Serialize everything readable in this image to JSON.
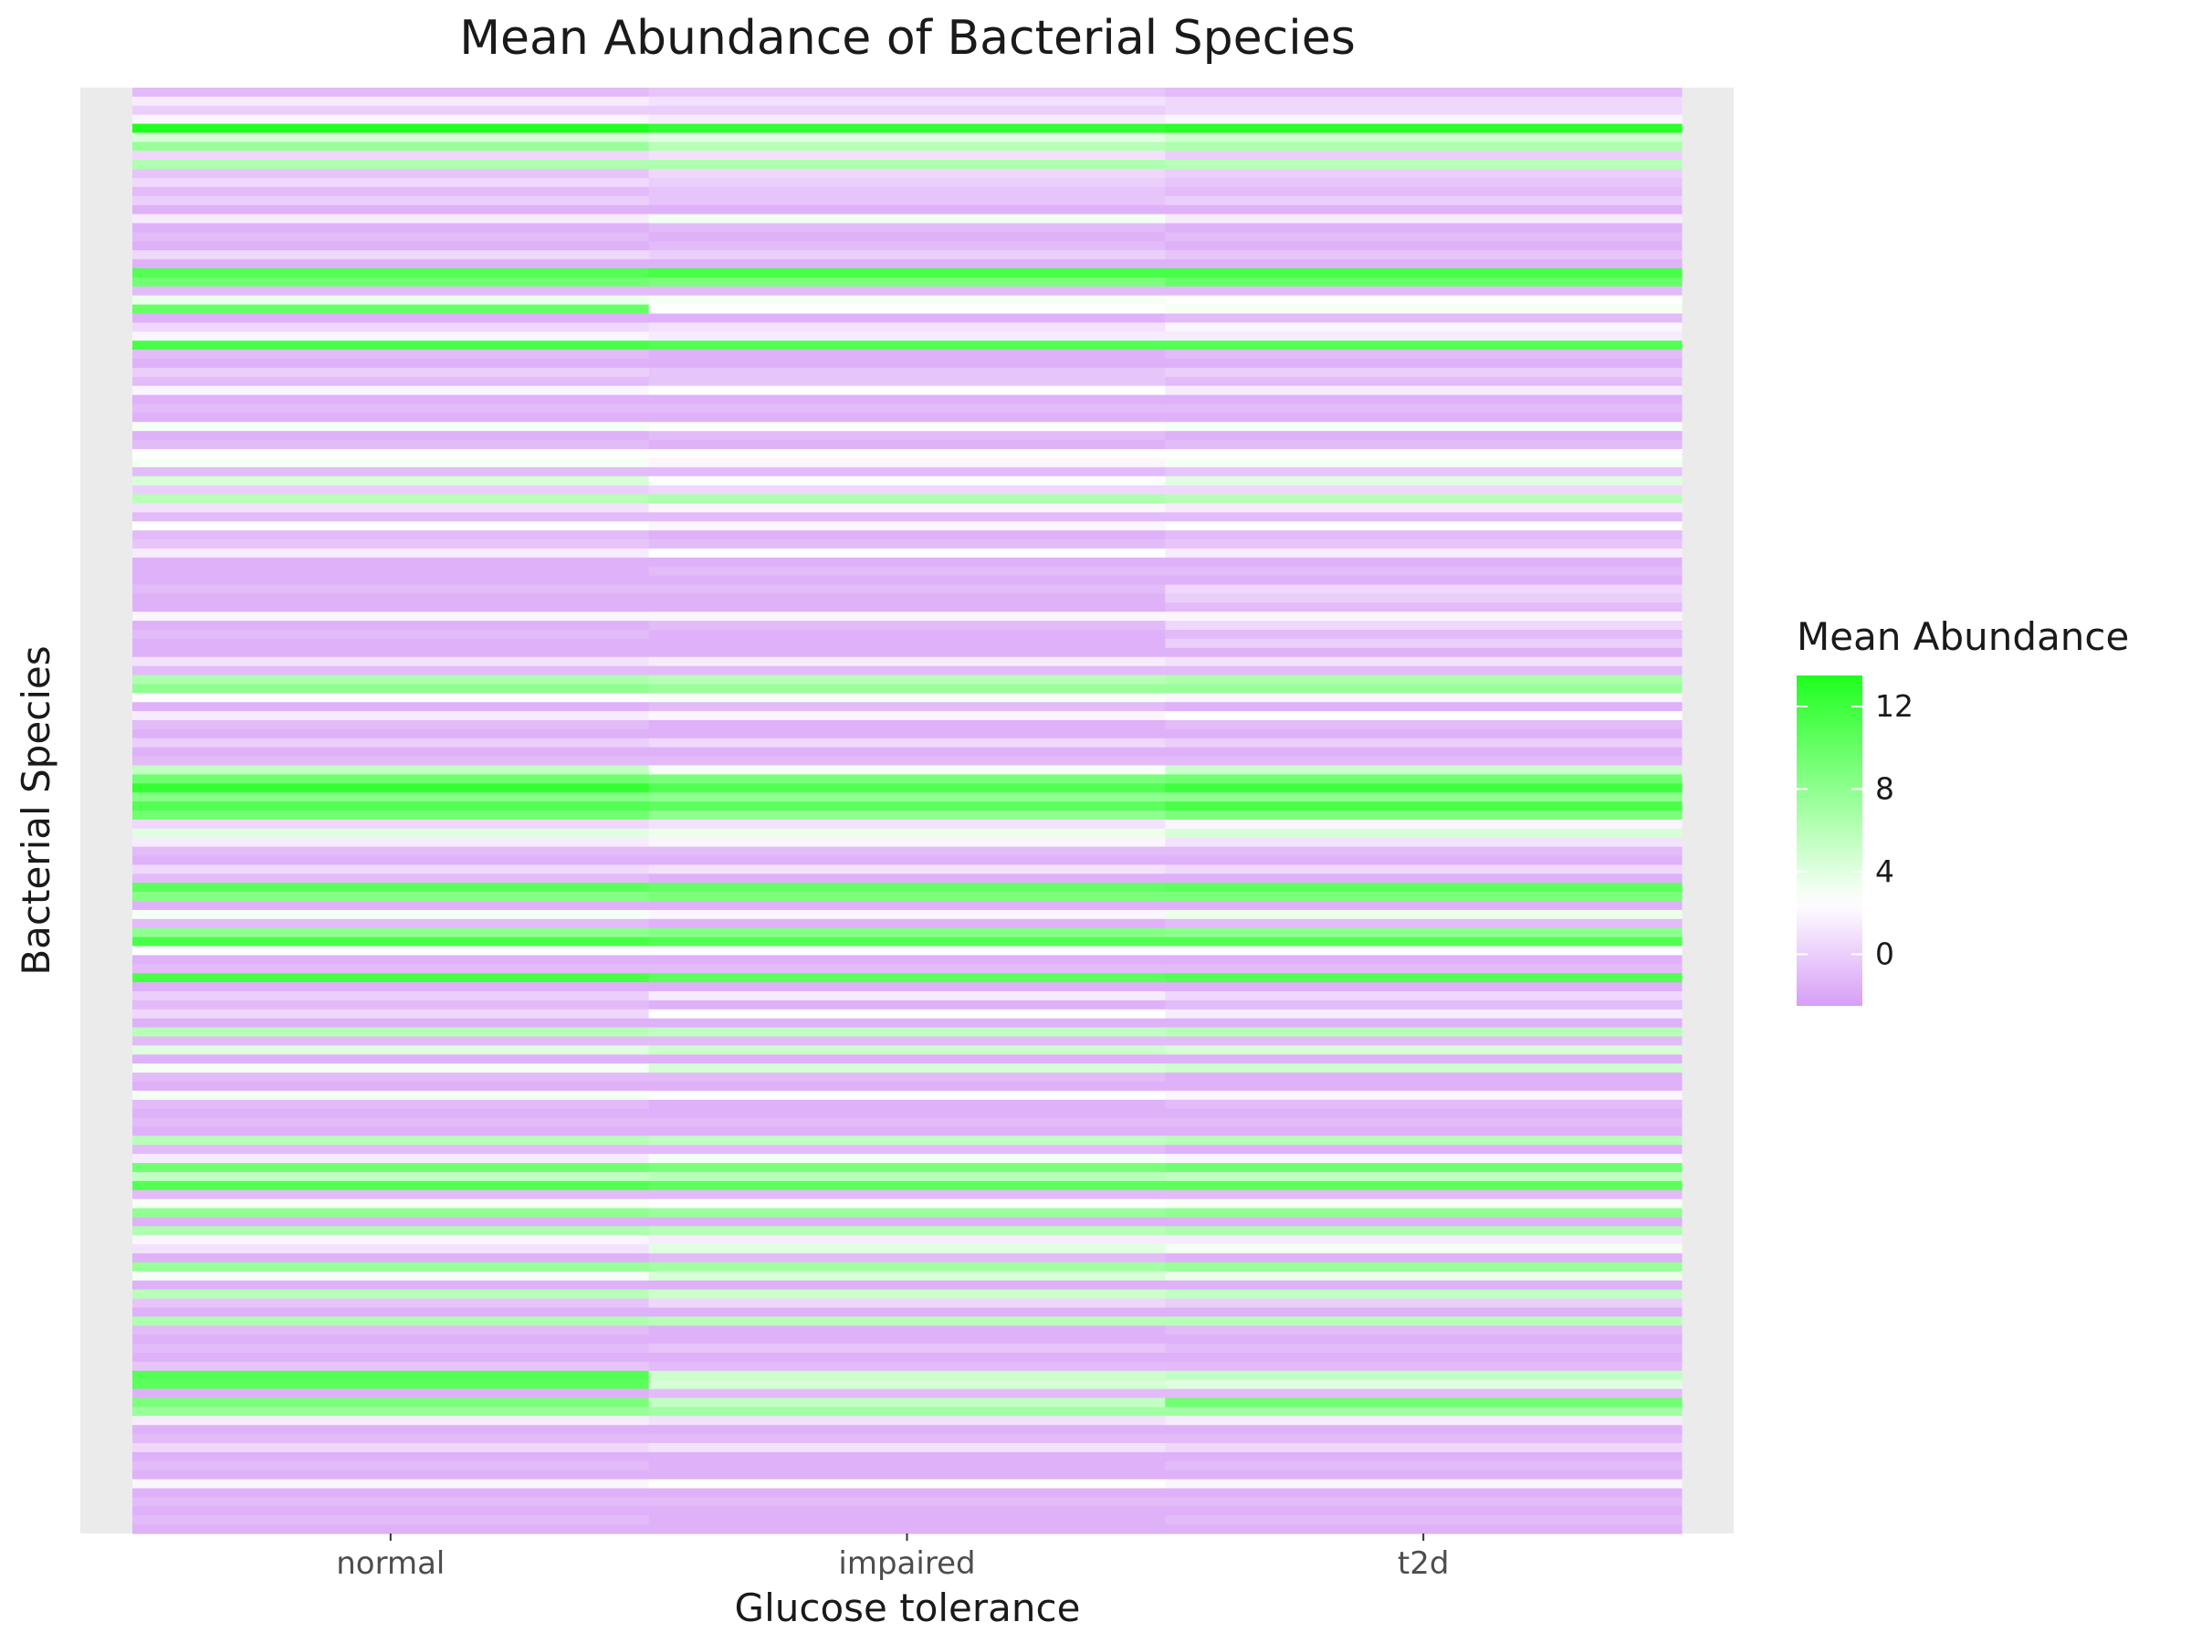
{
  "chart_data": {
    "type": "heatmap",
    "title": "Mean Abundance of Bacterial Species",
    "xlabel": "Glucose tolerance",
    "ylabel": "Bacterial Species",
    "categories": [
      "normal",
      "impaired",
      "t2d"
    ],
    "row_count": 160,
    "y_tick_labels": "none",
    "legend": {
      "title": "Mean Abundance",
      "placement": "right",
      "ticks": [
        0,
        4,
        8,
        12
      ],
      "range": [
        -2.5,
        13.5
      ]
    },
    "color_scale": {
      "low": "#d79ef7",
      "mid": "#ffffff",
      "high": "#1fff1f",
      "midpoint": 2.5
    },
    "panel_background": "#ebebeb",
    "values": [
      [
        -1.0,
        -0.5,
        -1.0
      ],
      [
        1.5,
        1.0,
        0.5
      ],
      [
        0.0,
        0.0,
        0.5
      ],
      [
        2.0,
        1.5,
        2.0
      ],
      [
        13.5,
        12.5,
        13.0
      ],
      [
        4.5,
        4.0,
        5.0
      ],
      [
        7.5,
        6.0,
        6.5
      ],
      [
        0.5,
        1.0,
        0.0
      ],
      [
        6.5,
        6.5,
        6.0
      ],
      [
        -0.5,
        0.5,
        0.0
      ],
      [
        0.5,
        0.0,
        -0.5
      ],
      [
        -1.0,
        -0.5,
        -1.0
      ],
      [
        0.0,
        -0.5,
        0.0
      ],
      [
        -1.5,
        -1.5,
        -1.5
      ],
      [
        1.5,
        3.0,
        1.5
      ],
      [
        -1.5,
        -1.0,
        -1.5
      ],
      [
        -1.0,
        -1.5,
        -1.0
      ],
      [
        -1.5,
        -1.0,
        -1.5
      ],
      [
        0.5,
        0.0,
        -0.5
      ],
      [
        -1.5,
        -1.5,
        -1.5
      ],
      [
        11.0,
        11.5,
        11.5
      ],
      [
        9.5,
        9.0,
        10.0
      ],
      [
        -1.0,
        -1.0,
        -1.0
      ],
      [
        3.5,
        3.0,
        2.5
      ],
      [
        10.0,
        2.5,
        3.0
      ],
      [
        -1.5,
        -1.5,
        -1.0
      ],
      [
        0.5,
        1.0,
        2.0
      ],
      [
        2.0,
        1.5,
        1.5
      ],
      [
        11.5,
        11.0,
        11.0
      ],
      [
        -1.0,
        -1.5,
        -1.0
      ],
      [
        -1.5,
        -1.5,
        -1.5
      ],
      [
        0.0,
        -0.5,
        0.0
      ],
      [
        -1.0,
        -0.5,
        -1.0
      ],
      [
        2.0,
        2.5,
        1.5
      ],
      [
        -1.5,
        -1.5,
        -1.5
      ],
      [
        -1.0,
        -1.0,
        -1.0
      ],
      [
        -1.5,
        -1.5,
        -1.5
      ],
      [
        3.0,
        2.5,
        3.0
      ],
      [
        -1.5,
        -1.0,
        -1.5
      ],
      [
        -1.0,
        -1.5,
        -1.0
      ],
      [
        2.5,
        2.5,
        2.5
      ],
      [
        3.0,
        2.0,
        3.0
      ],
      [
        -1.0,
        -1.0,
        -0.5
      ],
      [
        4.5,
        2.5,
        4.0
      ],
      [
        0.0,
        0.5,
        0.5
      ],
      [
        6.0,
        6.5,
        6.0
      ],
      [
        1.0,
        2.0,
        1.5
      ],
      [
        -1.0,
        -1.0,
        -1.0
      ],
      [
        2.5,
        2.0,
        2.5
      ],
      [
        -1.0,
        -1.5,
        -1.0
      ],
      [
        -0.5,
        -1.0,
        -0.5
      ],
      [
        1.5,
        2.5,
        1.5
      ],
      [
        -1.5,
        -1.5,
        -1.5
      ],
      [
        -1.5,
        -1.0,
        -1.0
      ],
      [
        -1.5,
        -1.5,
        -1.5
      ],
      [
        -1.0,
        -1.0,
        0.5
      ],
      [
        -1.5,
        -1.5,
        0.0
      ],
      [
        -1.5,
        -1.5,
        -1.0
      ],
      [
        2.0,
        2.0,
        2.0
      ],
      [
        -1.5,
        -1.0,
        0.5
      ],
      [
        -1.0,
        -1.5,
        -1.0
      ],
      [
        -1.5,
        -1.5,
        0.0
      ],
      [
        -1.5,
        -1.5,
        -1.5
      ],
      [
        1.0,
        1.5,
        1.0
      ],
      [
        -1.0,
        -1.0,
        -1.0
      ],
      [
        6.5,
        6.0,
        6.5
      ],
      [
        8.0,
        7.5,
        7.5
      ],
      [
        2.5,
        3.0,
        2.0
      ],
      [
        -1.5,
        -1.0,
        -1.5
      ],
      [
        1.5,
        2.0,
        2.5
      ],
      [
        -1.0,
        -1.5,
        -1.0
      ],
      [
        -1.5,
        -1.5,
        -1.5
      ],
      [
        0.0,
        0.5,
        0.0
      ],
      [
        -1.5,
        -1.5,
        -1.5
      ],
      [
        -1.0,
        -1.0,
        -1.0
      ],
      [
        5.5,
        3.0,
        5.0
      ],
      [
        9.5,
        9.0,
        9.5
      ],
      [
        12.5,
        11.0,
        12.0
      ],
      [
        8.5,
        8.0,
        8.0
      ],
      [
        11.0,
        10.5,
        11.5
      ],
      [
        9.5,
        8.0,
        9.0
      ],
      [
        0.5,
        1.0,
        2.0
      ],
      [
        4.0,
        3.5,
        4.5
      ],
      [
        1.5,
        2.0,
        1.0
      ],
      [
        -1.0,
        -1.0,
        -1.0
      ],
      [
        -1.5,
        -1.5,
        -1.5
      ],
      [
        0.5,
        1.0,
        0.5
      ],
      [
        -1.0,
        -1.5,
        -1.5
      ],
      [
        10.5,
        10.0,
        10.5
      ],
      [
        8.5,
        9.0,
        9.0
      ],
      [
        -1.5,
        -1.5,
        -1.5
      ],
      [
        3.0,
        2.0,
        3.5
      ],
      [
        -1.0,
        -1.5,
        -1.0
      ],
      [
        8.0,
        8.5,
        8.0
      ],
      [
        11.5,
        11.0,
        11.0
      ],
      [
        2.5,
        2.5,
        2.5
      ],
      [
        -1.5,
        -1.5,
        -1.5
      ],
      [
        -1.0,
        -1.0,
        -1.0
      ],
      [
        11.5,
        10.5,
        11.0
      ],
      [
        -1.5,
        -1.5,
        -1.5
      ],
      [
        0.0,
        1.5,
        0.5
      ],
      [
        -1.0,
        -1.5,
        -1.0
      ],
      [
        0.5,
        2.5,
        1.5
      ],
      [
        -1.5,
        -1.5,
        -1.5
      ],
      [
        6.0,
        5.5,
        6.0
      ],
      [
        -1.0,
        -1.0,
        -1.0
      ],
      [
        4.0,
        5.0,
        4.5
      ],
      [
        -1.5,
        -1.5,
        -1.5
      ],
      [
        3.0,
        4.5,
        5.0
      ],
      [
        -1.0,
        -1.0,
        -1.5
      ],
      [
        -1.5,
        -1.5,
        -1.5
      ],
      [
        3.0,
        2.5,
        2.0
      ],
      [
        -1.0,
        -1.5,
        -1.0
      ],
      [
        -1.5,
        -1.5,
        -1.5
      ],
      [
        -1.0,
        -1.0,
        -1.0
      ],
      [
        -1.5,
        -1.5,
        -1.5
      ],
      [
        6.0,
        5.5,
        6.0
      ],
      [
        -1.0,
        -1.0,
        -1.5
      ],
      [
        1.5,
        3.0,
        2.0
      ],
      [
        9.5,
        9.0,
        9.5
      ],
      [
        5.5,
        6.0,
        5.5
      ],
      [
        11.0,
        10.5,
        10.5
      ],
      [
        -1.0,
        -1.0,
        -1.0
      ],
      [
        3.0,
        2.5,
        3.0
      ],
      [
        8.0,
        7.5,
        8.0
      ],
      [
        -1.5,
        -1.5,
        -1.5
      ],
      [
        6.5,
        6.0,
        6.5
      ],
      [
        2.0,
        1.5,
        1.5
      ],
      [
        1.0,
        4.0,
        3.0
      ],
      [
        -1.5,
        -1.0,
        -1.5
      ],
      [
        7.5,
        7.0,
        7.5
      ],
      [
        3.0,
        4.5,
        3.5
      ],
      [
        -1.5,
        -1.5,
        -1.5
      ],
      [
        6.0,
        5.0,
        5.5
      ],
      [
        -0.5,
        0.5,
        0.0
      ],
      [
        -1.5,
        -1.5,
        -1.5
      ],
      [
        6.5,
        6.0,
        6.0
      ],
      [
        -1.0,
        -1.5,
        -1.0
      ],
      [
        -1.5,
        -1.5,
        -1.5
      ],
      [
        -1.0,
        -0.5,
        -1.0
      ],
      [
        -1.5,
        -1.5,
        -1.5
      ],
      [
        -0.5,
        -1.0,
        -1.0
      ],
      [
        11.0,
        5.0,
        5.5
      ],
      [
        10.5,
        4.5,
        4.0
      ],
      [
        -1.5,
        -1.0,
        -1.0
      ],
      [
        9.0,
        5.5,
        9.5
      ],
      [
        7.5,
        7.0,
        7.0
      ],
      [
        1.5,
        1.0,
        1.5
      ],
      [
        -1.5,
        -1.5,
        -1.5
      ],
      [
        -1.0,
        -1.0,
        -1.0
      ],
      [
        0.5,
        1.0,
        0.5
      ],
      [
        -1.5,
        -1.5,
        -1.5
      ],
      [
        -1.0,
        -1.5,
        -1.0
      ],
      [
        -1.5,
        -1.5,
        -1.5
      ],
      [
        2.0,
        2.5,
        2.0
      ],
      [
        -1.5,
        -1.5,
        -1.5
      ],
      [
        -1.0,
        -1.0,
        -1.0
      ],
      [
        -1.5,
        -1.5,
        -1.5
      ],
      [
        -1.0,
        -1.5,
        -1.0
      ],
      [
        -1.5,
        -1.5,
        -1.5
      ]
    ]
  }
}
